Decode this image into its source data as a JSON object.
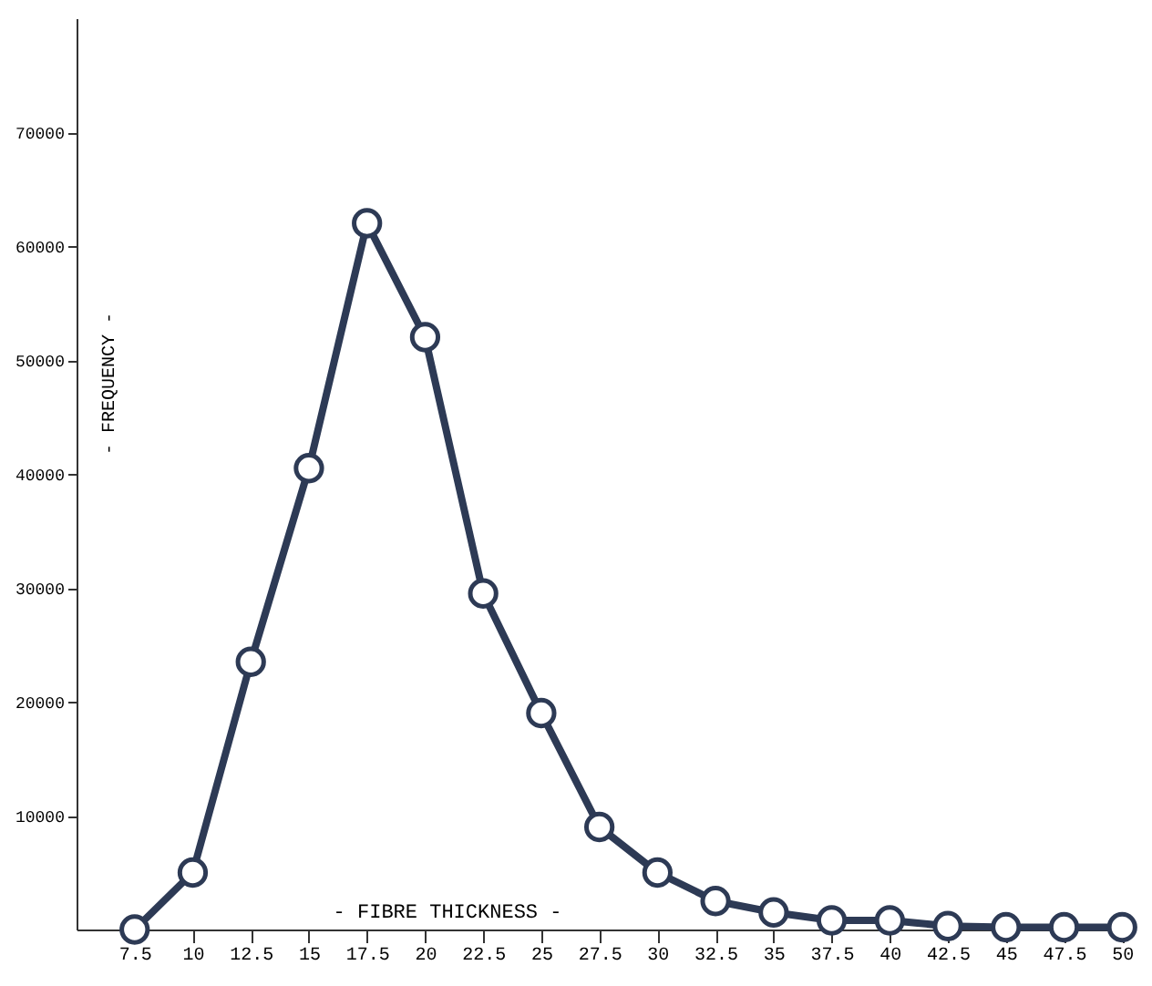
{
  "chart_data": {
    "type": "line",
    "xlabel": "- FIBRE THICKNESS -",
    "ylabel": "- FREQUENCY -",
    "x": [
      7.5,
      10,
      12.5,
      15,
      17.5,
      20,
      22.5,
      25,
      27.5,
      30,
      32.5,
      35,
      37.5,
      40,
      42.5,
      45,
      47.5,
      50
    ],
    "series": [
      {
        "color": "#2d3a55",
        "values": [
          0,
          5000,
          23500,
          40500,
          62000,
          52000,
          29500,
          19000,
          9000,
          5000,
          2500,
          1500,
          800,
          800,
          300,
          200,
          200,
          200
        ]
      }
    ],
    "xlim": [
      5,
      50.5
    ],
    "xticks": [
      7.5,
      10,
      12.5,
      15,
      17.5,
      20,
      22.5,
      25,
      27.5,
      30,
      32.5,
      35,
      37.5,
      40,
      42.5,
      45,
      47.5,
      50
    ],
    "ylim": [
      0,
      80000
    ],
    "yticks": [
      10000,
      20000,
      30000,
      40000,
      50000,
      60000,
      70000
    ],
    "grid": false,
    "marker": "circle",
    "line_style": "solid"
  }
}
